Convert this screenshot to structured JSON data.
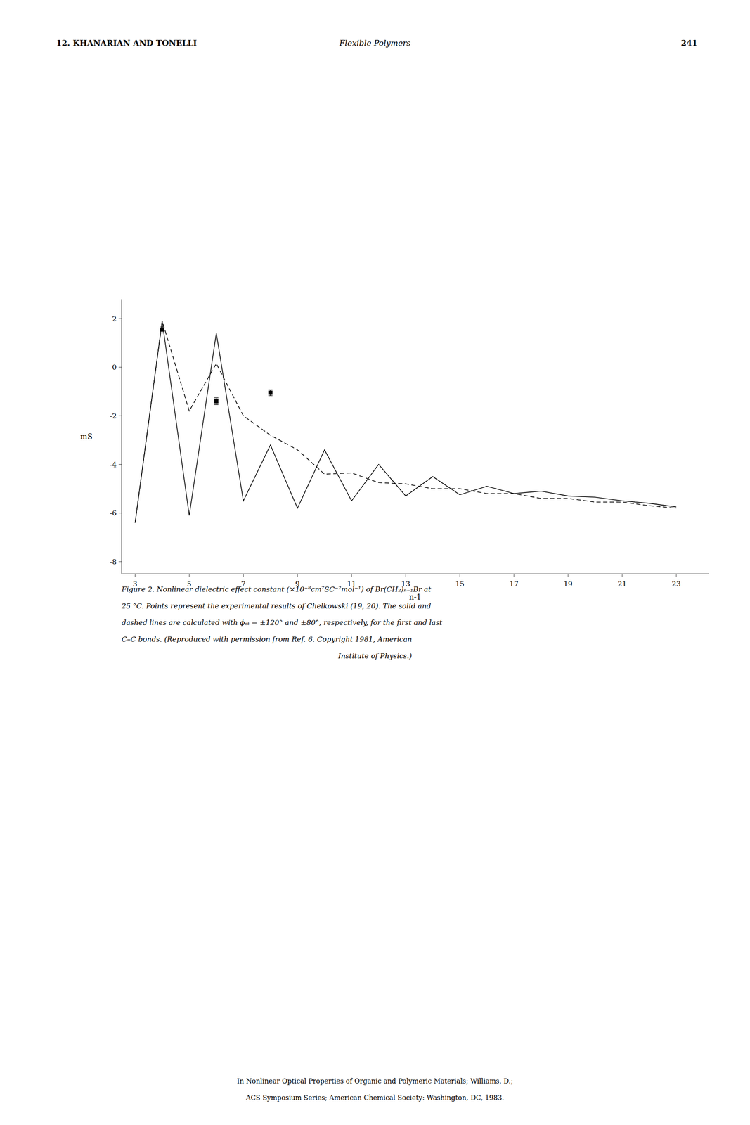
{
  "chart_data": {
    "type": "line",
    "title": "Flexible Polymers",
    "annotations": [
      "12.   KHANARIAN AND TONELLI",
      "241",
      "Figure 2.  Nonlinear dielectric effect constant (×10⁻⁸cm⁷SC⁻²mol⁻¹) of Br(CH₂)ₙ₋₁Br at",
      "25 °C.  Points represent the experimental results of Chelkowski (19, 20).  The solid and",
      "dashed lines are calculated with ϕₑₜ = ±120° and ±80°, respectively, for the first and last",
      "C–C bonds.  (Reproduced with permission from Ref. 6.  Copyright 1981, American",
      "Institute of Physics.)",
      "In Nonlinear Optical Properties of Organic and Polymeric Materials; Williams, D.;",
      "ACS Symposium Series; American Chemical Society: Washington, DC, 1983."
    ],
    "x_label": "n-1",
    "y_label": "mS",
    "xlim": [
      2.5,
      24.2
    ],
    "ylim": [
      -8.5,
      2.8
    ],
    "xticks": [
      3,
      5,
      7,
      9,
      11,
      13,
      15,
      17,
      19,
      21,
      23
    ],
    "yticks": [
      2,
      0,
      -2,
      -4,
      -6,
      -8
    ],
    "grid": false,
    "series": [
      {
        "type": "line",
        "line_style": "solid",
        "color": "#000000",
        "x": [
          3,
          4,
          5,
          6,
          7,
          8,
          9,
          10,
          11,
          12,
          13,
          14,
          15,
          16,
          17,
          18,
          19,
          20,
          21,
          22,
          23
        ],
        "values": [
          -6.4,
          1.9,
          -6.1,
          1.4,
          -5.5,
          -3.2,
          -5.8,
          -3.4,
          -5.5,
          -4.0,
          -5.3,
          -4.5,
          -5.25,
          -4.9,
          -5.2,
          -5.1,
          -5.3,
          -5.35,
          -5.5,
          -5.6,
          -5.75
        ]
      },
      {
        "type": "line",
        "line_style": "dashed",
        "color": "#000000",
        "x": [
          3,
          4,
          5,
          6,
          7,
          8,
          9,
          10,
          11,
          12,
          13,
          14,
          15,
          16,
          17,
          18,
          19,
          20,
          21,
          22,
          23
        ],
        "values": [
          -6.4,
          1.9,
          -1.8,
          0.15,
          -2.0,
          -2.8,
          -3.4,
          -4.4,
          -4.35,
          -4.75,
          -4.8,
          -5.0,
          -5.0,
          -5.2,
          -5.2,
          -5.4,
          -5.4,
          -5.55,
          -5.55,
          -5.7,
          -5.8
        ]
      },
      {
        "type": "scatter",
        "marker": "square",
        "color": "#000000",
        "x": [
          4,
          6,
          8
        ],
        "values": [
          1.55,
          -1.4,
          -1.05
        ],
        "errors": [
          0.14,
          0.14,
          0.12
        ]
      }
    ]
  }
}
